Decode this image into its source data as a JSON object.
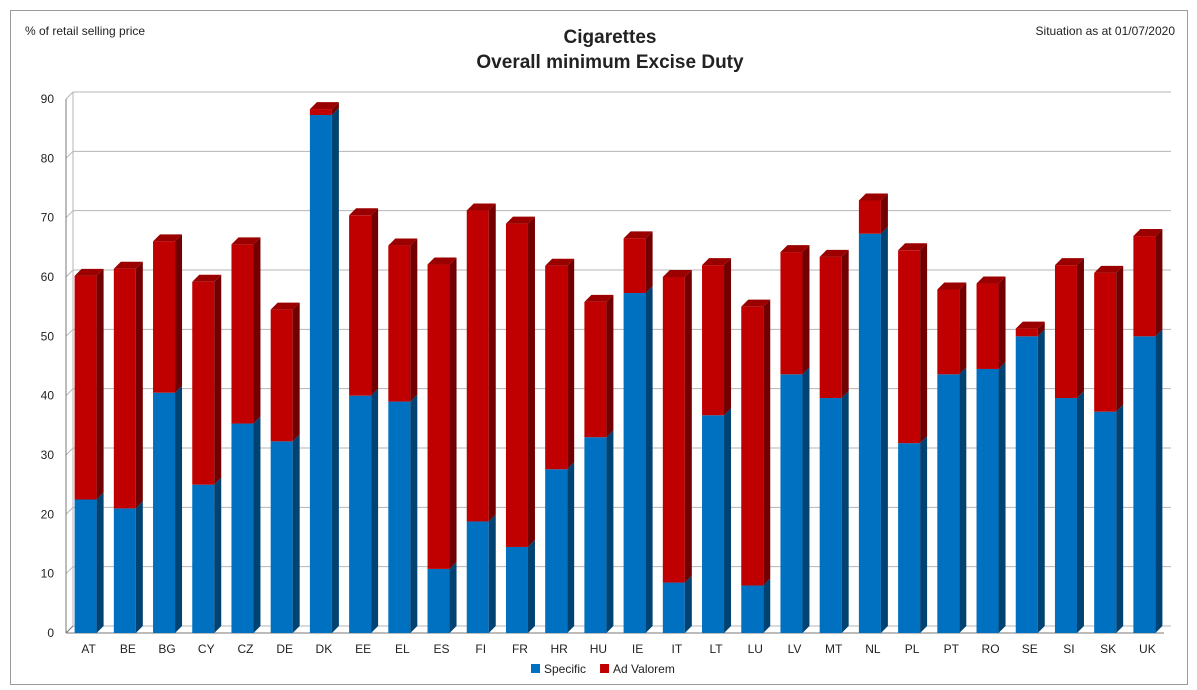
{
  "chart_data": {
    "type": "bar",
    "stacked": true,
    "title": "Cigarettes",
    "subtitle": "Overall minimum Excise Duty",
    "ylabel": "% of retail selling price",
    "note": "Situation as at 01/07/2020",
    "ylim": [
      0,
      90
    ],
    "yticks": [
      0,
      10,
      20,
      30,
      40,
      50,
      60,
      70,
      80,
      90
    ],
    "grid": true,
    "legend_position": "bottom",
    "categories": [
      "AT",
      "BE",
      "BG",
      "CY",
      "CZ",
      "DE",
      "DK",
      "EE",
      "EL",
      "ES",
      "FI",
      "FR",
      "HR",
      "HU",
      "IE",
      "IT",
      "LT",
      "LU",
      "LV",
      "MT",
      "NL",
      "PL",
      "PT",
      "RO",
      "SE",
      "SI",
      "SK",
      "UK"
    ],
    "series": [
      {
        "name": "Specific",
        "color": "#0070C0",
        "values": [
          22.5,
          21.0,
          40.5,
          25.0,
          35.3,
          32.3,
          87.3,
          40.0,
          39.0,
          10.8,
          18.8,
          14.5,
          27.6,
          33.0,
          57.3,
          8.5,
          36.7,
          8.0,
          43.6,
          39.6,
          67.3,
          32.0,
          43.6,
          44.5,
          50.0,
          39.6,
          37.3,
          50.0
        ]
      },
      {
        "name": "Ad Valorem",
        "color": "#C00000",
        "values": [
          37.7,
          40.4,
          25.5,
          34.2,
          30.2,
          22.2,
          1.0,
          30.4,
          26.3,
          51.3,
          52.4,
          54.5,
          34.3,
          22.8,
          9.2,
          51.5,
          25.3,
          47.0,
          20.6,
          23.8,
          5.6,
          32.5,
          14.3,
          14.4,
          1.3,
          22.4,
          23.4,
          16.9
        ]
      }
    ]
  }
}
